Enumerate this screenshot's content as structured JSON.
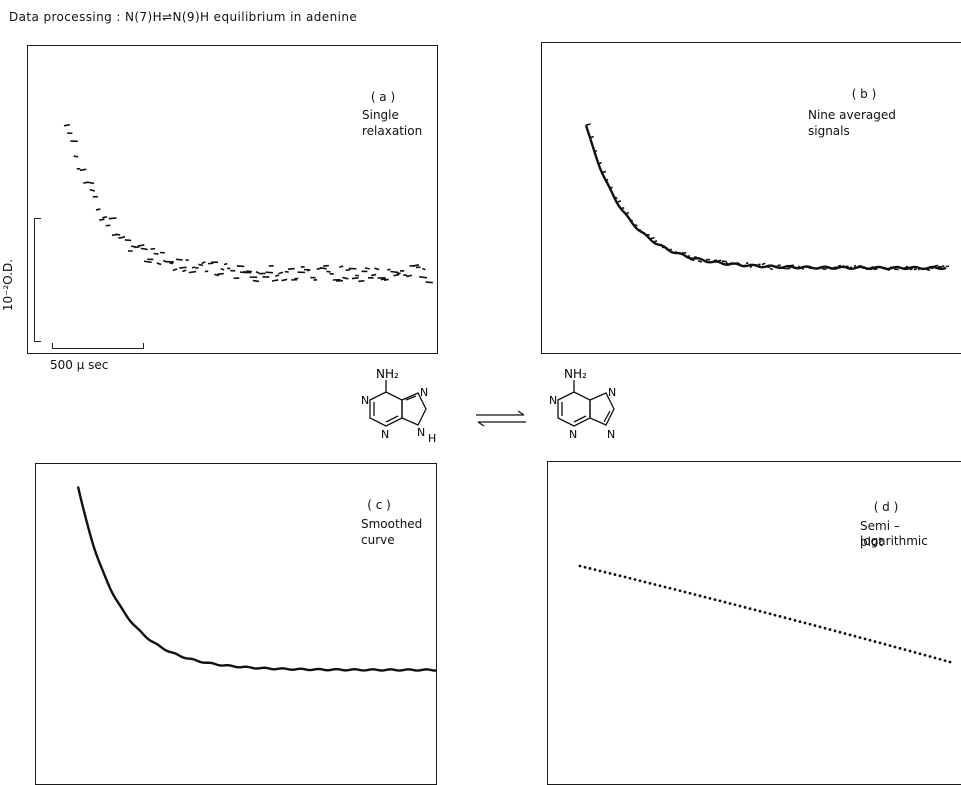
{
  "title": "Data processing : N(7)H⇌N(9)H equilibrium in adenine",
  "scale": {
    "y_label": "10⁻²O.D.",
    "x_label": "500 μ sec"
  },
  "panels": [
    {
      "label": "( a )",
      "desc_line1": "Single",
      "desc_line2": "relaxation"
    },
    {
      "label": "( b )",
      "desc_line1": "Nine  averaged",
      "desc_line2": "signals"
    },
    {
      "label": "( c )",
      "desc_line1": "Smoothed",
      "desc_line2": "curve"
    },
    {
      "label": "( d )",
      "desc_line1": "Semi – logarithmic",
      "desc_line2": "plot"
    }
  ],
  "molecules": {
    "left": {
      "nh2": "NH₂",
      "n1": "N",
      "n3": "N",
      "n7": "N",
      "n9": "N",
      "h": "H"
    },
    "right": {
      "nh2": "NH₂",
      "n1": "N",
      "n3": "N",
      "n7": "N",
      "n9": "N"
    }
  }
}
